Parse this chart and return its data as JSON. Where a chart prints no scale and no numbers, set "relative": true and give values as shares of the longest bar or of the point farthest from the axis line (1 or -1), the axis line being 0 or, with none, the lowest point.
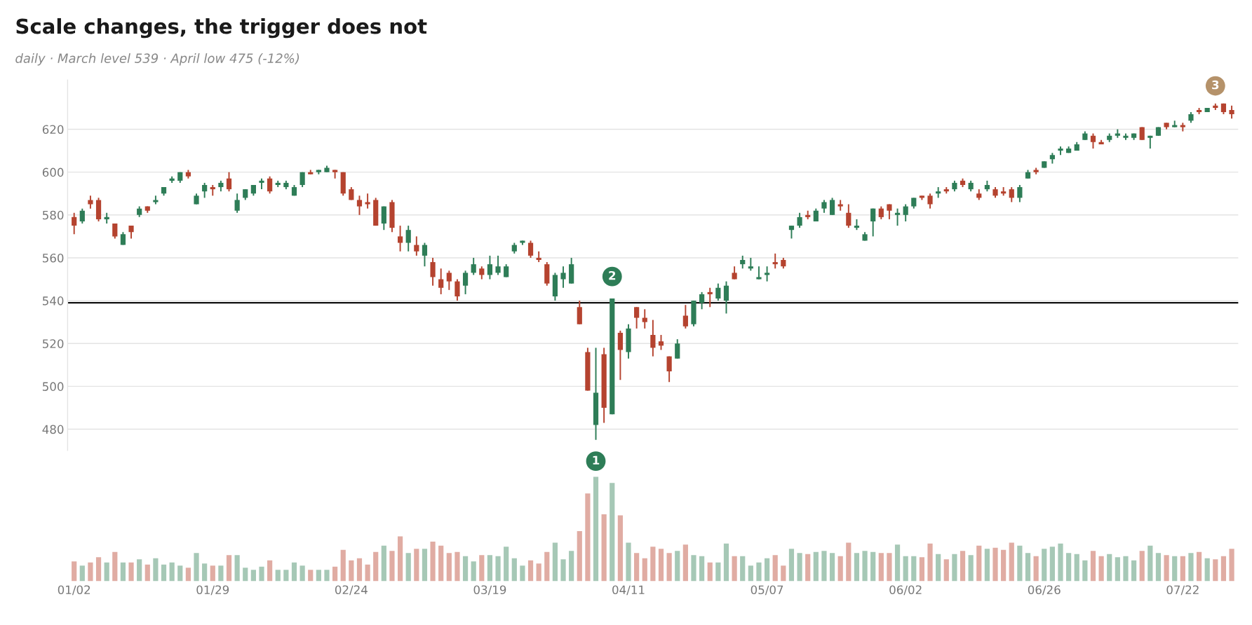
{
  "chart_data": [
    {
      "type": "candlestick",
      "title": "Scale changes, the trigger does not",
      "subtitle": "daily · March level 539 · April low 475 (-12%)",
      "categories": [
        null,
        null,
        null,
        null,
        null,
        null,
        null,
        null,
        null,
        null,
        null,
        null,
        null,
        null,
        null,
        null,
        null,
        null,
        null,
        null,
        null,
        null,
        null,
        null,
        null,
        null,
        null,
        null,
        null,
        null,
        null,
        null,
        null,
        null,
        null,
        null,
        null,
        null,
        null,
        null,
        null,
        null,
        null,
        null,
        null,
        null,
        null,
        null,
        null,
        null,
        null,
        null,
        null,
        null,
        null,
        null,
        null,
        null,
        null,
        null,
        null,
        null,
        null,
        null,
        null,
        null,
        null,
        null,
        null,
        null,
        null,
        null,
        null,
        null,
        null,
        null,
        null,
        null,
        null,
        null,
        null,
        null,
        null,
        null,
        null,
        null,
        null,
        null,
        null,
        null,
        null,
        null,
        null,
        null,
        null,
        null,
        null,
        null,
        null,
        null,
        null,
        null,
        null,
        null,
        null,
        null,
        null,
        null,
        null,
        null,
        null,
        null,
        null,
        null,
        null,
        null,
        null,
        null,
        null,
        null,
        null,
        null,
        null,
        null,
        null,
        null,
        null,
        null,
        null,
        null,
        null,
        null,
        null,
        null,
        null,
        null,
        null,
        null,
        null,
        null,
        null,
        null,
        null
      ],
      "ohlc": [
        [
          579,
          581,
          571,
          575
        ],
        [
          577,
          583,
          576,
          582
        ],
        [
          587,
          589,
          583,
          585
        ],
        [
          587,
          588,
          577,
          578
        ],
        [
          578,
          581,
          576,
          579
        ],
        [
          576,
          576,
          569,
          570
        ],
        [
          566,
          572,
          566,
          571
        ],
        [
          575,
          575,
          569,
          572
        ],
        [
          580,
          584,
          579,
          583
        ],
        [
          584,
          584,
          581,
          582
        ],
        [
          586,
          589,
          585,
          587
        ],
        [
          590,
          593,
          589,
          593
        ],
        [
          596,
          598,
          595,
          597
        ],
        [
          596,
          600,
          595,
          600
        ],
        [
          600,
          601,
          597,
          598
        ],
        [
          585,
          590,
          585,
          589
        ],
        [
          591,
          595,
          588,
          594
        ],
        [
          593,
          594,
          589,
          592
        ],
        [
          593,
          596,
          591,
          595
        ],
        [
          597,
          600,
          591,
          592
        ],
        [
          582,
          590,
          581,
          587
        ],
        [
          588,
          592,
          587,
          592
        ],
        [
          590,
          594,
          589,
          594
        ],
        [
          595,
          597,
          592,
          596
        ],
        [
          597,
          598,
          590,
          591
        ],
        [
          594,
          596,
          593,
          595
        ],
        [
          593,
          596,
          592,
          595
        ],
        [
          589,
          594,
          589,
          593
        ],
        [
          594,
          600,
          593,
          600
        ],
        [
          600,
          601,
          599,
          599
        ],
        [
          600,
          601,
          599,
          601
        ],
        [
          600,
          603,
          600,
          602
        ],
        [
          601,
          601,
          597,
          600
        ],
        [
          600,
          600,
          589,
          590
        ],
        [
          592,
          593,
          587,
          587
        ],
        [
          587,
          589,
          580,
          584
        ],
        [
          586,
          590,
          583,
          585
        ],
        [
          587,
          588,
          575,
          575
        ],
        [
          576,
          584,
          573,
          584
        ],
        [
          586,
          587,
          572,
          574
        ],
        [
          570,
          575,
          563,
          567
        ],
        [
          567,
          575,
          563,
          573
        ],
        [
          566,
          570,
          561,
          563
        ],
        [
          561,
          567,
          556,
          566
        ],
        [
          558,
          560,
          547,
          551
        ],
        [
          550,
          555,
          543,
          546
        ],
        [
          553,
          554,
          545,
          549
        ],
        [
          549,
          550,
          540,
          542
        ],
        [
          547,
          554,
          543,
          553
        ],
        [
          553,
          560,
          552,
          557
        ],
        [
          555,
          556,
          550,
          552
        ],
        [
          552,
          561,
          550,
          557
        ],
        [
          553,
          561,
          552,
          556
        ],
        [
          551,
          557,
          551,
          556
        ],
        [
          563,
          567,
          562,
          566
        ],
        [
          567,
          568,
          566,
          568
        ],
        [
          567,
          568,
          560,
          561
        ],
        [
          560,
          563,
          558,
          559
        ],
        [
          557,
          558,
          547,
          548
        ],
        [
          542,
          553,
          540,
          552
        ],
        [
          550,
          556,
          546,
          553
        ],
        [
          548,
          560,
          548,
          557
        ],
        [
          537,
          540,
          529,
          529
        ],
        [
          516,
          518,
          498,
          498
        ],
        [
          482,
          518,
          475,
          497
        ],
        [
          515,
          518,
          483,
          490
        ],
        [
          487,
          541,
          487,
          541
        ],
        [
          525,
          526,
          503,
          517
        ],
        [
          516,
          529,
          513,
          527
        ],
        [
          537,
          537,
          527,
          532
        ],
        [
          532,
          536,
          527,
          530
        ],
        [
          524,
          531,
          514,
          518
        ],
        [
          521,
          524,
          517,
          519
        ],
        [
          514,
          514,
          502,
          507
        ],
        [
          513,
          522,
          513,
          520
        ],
        [
          533,
          538,
          527,
          528
        ],
        [
          529,
          540,
          528,
          540
        ],
        [
          539,
          544,
          536,
          543
        ],
        [
          544,
          546,
          537,
          543
        ],
        [
          541,
          548,
          540,
          546
        ],
        [
          540,
          549,
          534,
          547
        ],
        [
          553,
          556,
          550,
          550
        ],
        [
          557,
          561,
          555,
          559
        ],
        [
          555,
          560,
          554,
          556
        ],
        [
          550,
          556,
          550,
          551
        ],
        [
          552,
          556,
          549,
          553
        ],
        [
          558,
          562,
          555,
          557
        ],
        [
          559,
          560,
          555,
          556
        ],
        [
          573,
          575,
          569,
          575
        ],
        [
          575,
          581,
          574,
          579
        ],
        [
          580,
          582,
          578,
          579
        ],
        [
          577,
          583,
          577,
          582
        ],
        [
          583,
          587,
          581,
          586
        ],
        [
          580,
          588,
          580,
          587
        ],
        [
          585,
          587,
          582,
          584
        ],
        [
          581,
          585,
          574,
          575
        ],
        [
          574,
          578,
          573,
          575
        ],
        [
          568,
          572,
          568,
          571
        ],
        [
          577,
          583,
          570,
          583
        ],
        [
          583,
          584,
          578,
          579
        ],
        [
          585,
          585,
          578,
          582
        ],
        [
          580,
          583,
          575,
          581
        ],
        [
          580,
          585,
          577,
          584
        ],
        [
          584,
          588,
          583,
          588
        ],
        [
          589,
          589,
          587,
          588
        ],
        [
          589,
          590,
          583,
          585
        ],
        [
          590,
          593,
          588,
          591
        ],
        [
          592,
          593,
          590,
          591
        ],
        [
          592,
          596,
          591,
          595
        ],
        [
          596,
          597,
          593,
          594
        ],
        [
          592,
          596,
          591,
          595
        ],
        [
          590,
          592,
          587,
          588
        ],
        [
          592,
          596,
          591,
          594
        ],
        [
          592,
          593,
          588,
          589
        ],
        [
          591,
          593,
          589,
          590
        ],
        [
          592,
          593,
          586,
          588
        ],
        [
          588,
          594,
          586,
          593
        ],
        [
          597,
          601,
          597,
          600
        ],
        [
          601,
          602,
          599,
          600
        ],
        [
          602,
          605,
          602,
          605
        ],
        [
          606,
          609,
          604,
          608
        ],
        [
          610,
          612,
          608,
          611
        ],
        [
          609,
          612,
          609,
          611
        ],
        [
          610,
          614,
          610,
          613
        ],
        [
          615,
          619,
          615,
          618
        ],
        [
          617,
          618,
          611,
          614
        ],
        [
          614,
          615,
          613,
          613
        ],
        [
          615,
          618,
          614,
          617
        ],
        [
          617,
          620,
          616,
          618
        ],
        [
          616,
          618,
          615,
          617
        ],
        [
          616,
          618,
          615,
          618
        ],
        [
          621,
          621,
          615,
          615
        ],
        [
          616,
          617,
          611,
          617
        ],
        [
          617,
          621,
          617,
          621
        ],
        [
          623,
          623,
          620,
          621
        ],
        [
          621,
          624,
          621,
          622
        ],
        [
          622,
          623,
          619,
          621
        ],
        [
          624,
          628,
          623,
          627
        ],
        [
          629,
          630,
          627,
          628
        ],
        [
          628,
          630,
          628,
          630
        ],
        [
          631,
          632,
          629,
          630
        ],
        [
          632,
          632,
          627,
          628
        ],
        [
          629,
          631,
          625,
          627
        ]
      ],
      "colors": [
        "#b5432f",
        "#2e7d57",
        "#b5432f",
        "#b5432f",
        "#2e7d57",
        "#b5432f",
        "#2e7d57",
        "#b5432f",
        "#2e7d57",
        "#b5432f",
        "#2e7d57",
        "#2e7d57",
        "#2e7d57",
        "#2e7d57",
        "#b5432f",
        "#2e7d57",
        "#2e7d57",
        "#b5432f",
        "#2e7d57",
        "#b5432f",
        "#2e7d57",
        "#2e7d57",
        "#2e7d57",
        "#2e7d57",
        "#b5432f",
        "#2e7d57",
        "#2e7d57",
        "#2e7d57",
        "#2e7d57",
        "#b5432f",
        "#2e7d57",
        "#2e7d57",
        "#b5432f",
        "#b5432f",
        "#b5432f",
        "#b5432f",
        "#b5432f",
        "#b5432f",
        "#2e7d57",
        "#b5432f",
        "#b5432f",
        "#2e7d57",
        "#b5432f",
        "#2e7d57",
        "#b5432f",
        "#b5432f",
        "#b5432f",
        "#b5432f",
        "#2e7d57",
        "#2e7d57",
        "#b5432f",
        "#2e7d57",
        "#2e7d57",
        "#2e7d57",
        "#2e7d57",
        "#2e7d57",
        "#b5432f",
        "#b5432f",
        "#b5432f",
        "#2e7d57",
        "#2e7d57",
        "#2e7d57",
        "#b5432f",
        "#b5432f",
        "#2e7d57",
        "#b5432f",
        "#2e7d57",
        "#b5432f",
        "#2e7d57",
        "#b5432f",
        "#b5432f",
        "#b5432f",
        "#b5432f",
        "#b5432f",
        "#2e7d57",
        "#b5432f",
        "#2e7d57",
        "#2e7d57",
        "#b5432f",
        "#2e7d57",
        "#2e7d57",
        "#b5432f",
        "#2e7d57",
        "#2e7d57",
        "#2e7d57",
        "#2e7d57",
        "#b5432f",
        "#b5432f",
        "#2e7d57",
        "#2e7d57",
        "#b5432f",
        "#2e7d57",
        "#2e7d57",
        "#2e7d57",
        "#b5432f",
        "#b5432f",
        "#2e7d57",
        "#2e7d57",
        "#2e7d57",
        "#b5432f",
        "#b5432f",
        "#2e7d57",
        "#2e7d57",
        "#2e7d57",
        "#b5432f",
        "#b5432f",
        "#2e7d57",
        "#b5432f",
        "#2e7d57",
        "#b5432f",
        "#2e7d57",
        "#b5432f",
        "#2e7d57",
        "#b5432f",
        "#b5432f",
        "#b5432f",
        "#2e7d57",
        "#2e7d57",
        "#b5432f",
        "#2e7d57",
        "#2e7d57",
        "#2e7d57",
        "#2e7d57",
        "#2e7d57",
        "#2e7d57",
        "#b5432f",
        "#b5432f",
        "#2e7d57",
        "#2e7d57",
        "#2e7d57",
        "#2e7d57",
        "#b5432f",
        "#2e7d57",
        "#2e7d57",
        "#b5432f",
        "#2e7d57",
        "#b5432f",
        "#2e7d57",
        "#b5432f",
        "#2e7d57",
        "#b5432f",
        "#b5432f",
        "#b5432f"
      ],
      "ylim": [
        470,
        643
      ],
      "yticks": [
        480,
        500,
        520,
        540,
        560,
        580,
        600,
        620
      ],
      "grid": "y",
      "ref_lines": [
        {
          "axis": "y",
          "value": 539,
          "color": "#111111"
        }
      ],
      "annotations": [
        "2",
        "3"
      ]
    },
    {
      "type": "bar",
      "relative": true,
      "tick_labels": "x",
      "categories": [
        "01/02",
        null,
        null,
        null,
        null,
        null,
        null,
        null,
        null,
        null,
        null,
        null,
        null,
        null,
        null,
        null,
        null,
        "01/29",
        null,
        null,
        null,
        null,
        null,
        null,
        null,
        null,
        null,
        null,
        null,
        null,
        null,
        null,
        null,
        null,
        "02/24",
        null,
        null,
        null,
        null,
        null,
        null,
        null,
        null,
        null,
        null,
        null,
        null,
        null,
        null,
        null,
        null,
        "03/19",
        null,
        null,
        null,
        null,
        null,
        null,
        null,
        null,
        null,
        null,
        null,
        null,
        null,
        null,
        null,
        null,
        "04/11",
        null,
        null,
        null,
        null,
        null,
        null,
        null,
        null,
        null,
        null,
        null,
        null,
        null,
        null,
        null,
        null,
        "05/07",
        null,
        null,
        null,
        null,
        null,
        null,
        null,
        null,
        null,
        null,
        null,
        null,
        null,
        null,
        null,
        null,
        "06/02",
        null,
        null,
        null,
        null,
        null,
        null,
        null,
        null,
        null,
        null,
        null,
        null,
        null,
        null,
        null,
        null,
        "06/26",
        null,
        null,
        null,
        null,
        null,
        null,
        null,
        null,
        null,
        null,
        null,
        null,
        null,
        null,
        null,
        null,
        "07/22",
        null,
        null,
        null,
        null,
        null,
        null
      ],
      "values": [
        0.19,
        0.15,
        0.18,
        0.23,
        0.18,
        0.28,
        0.18,
        0.18,
        0.21,
        0.16,
        0.22,
        0.16,
        0.18,
        0.15,
        0.13,
        0.27,
        0.17,
        0.15,
        0.15,
        0.25,
        0.25,
        0.13,
        0.11,
        0.14,
        0.2,
        0.11,
        0.11,
        0.18,
        0.15,
        0.11,
        0.11,
        0.11,
        0.14,
        0.3,
        0.2,
        0.22,
        0.16,
        0.28,
        0.34,
        0.29,
        0.43,
        0.27,
        0.31,
        0.31,
        0.38,
        0.34,
        0.27,
        0.28,
        0.24,
        0.19,
        0.25,
        0.25,
        0.24,
        0.33,
        0.22,
        0.15,
        0.2,
        0.17,
        0.28,
        0.37,
        0.21,
        0.29,
        0.48,
        0.84,
        1,
        0.64,
        0.94,
        0.63,
        0.37,
        0.27,
        0.22,
        0.33,
        0.31,
        0.27,
        0.29,
        0.35,
        0.25,
        0.24,
        0.18,
        0.18,
        0.36,
        0.24,
        0.24,
        0.15,
        0.18,
        0.22,
        0.25,
        0.15,
        0.31,
        0.27,
        0.26,
        0.28,
        0.29,
        0.27,
        0.24,
        0.37,
        0.27,
        0.29,
        0.28,
        0.27,
        0.27,
        0.35,
        0.24,
        0.24,
        0.23,
        0.36,
        0.26,
        0.21,
        0.26,
        0.29,
        0.25,
        0.34,
        0.31,
        0.32,
        0.3,
        0.37,
        0.34,
        0.27,
        0.24,
        0.31,
        0.33,
        0.36,
        0.27,
        0.26,
        0.2,
        0.29,
        0.24,
        0.26,
        0.23,
        0.24,
        0.2,
        0.29,
        0.34,
        0.27,
        0.25,
        0.24,
        0.24,
        0.27,
        0.28,
        0.22,
        0.21,
        0.24,
        0.31
      ],
      "colors": [
        "#e0aca3",
        "#a6c8b6",
        "#e0aca3",
        "#e0aca3",
        "#a6c8b6",
        "#e0aca3",
        "#a6c8b6",
        "#e0aca3",
        "#a6c8b6",
        "#e0aca3",
        "#a6c8b6",
        "#a6c8b6",
        "#a6c8b6",
        "#a6c8b6",
        "#e0aca3",
        "#a6c8b6",
        "#a6c8b6",
        "#e0aca3",
        "#a6c8b6",
        "#e0aca3",
        "#a6c8b6",
        "#a6c8b6",
        "#a6c8b6",
        "#a6c8b6",
        "#e0aca3",
        "#a6c8b6",
        "#a6c8b6",
        "#a6c8b6",
        "#a6c8b6",
        "#e0aca3",
        "#a6c8b6",
        "#a6c8b6",
        "#e0aca3",
        "#e0aca3",
        "#e0aca3",
        "#e0aca3",
        "#e0aca3",
        "#e0aca3",
        "#a6c8b6",
        "#e0aca3",
        "#e0aca3",
        "#a6c8b6",
        "#e0aca3",
        "#a6c8b6",
        "#e0aca3",
        "#e0aca3",
        "#e0aca3",
        "#e0aca3",
        "#a6c8b6",
        "#a6c8b6",
        "#e0aca3",
        "#a6c8b6",
        "#a6c8b6",
        "#a6c8b6",
        "#a6c8b6",
        "#a6c8b6",
        "#e0aca3",
        "#e0aca3",
        "#e0aca3",
        "#a6c8b6",
        "#a6c8b6",
        "#a6c8b6",
        "#e0aca3",
        "#e0aca3",
        "#a6c8b6",
        "#e0aca3",
        "#a6c8b6",
        "#e0aca3",
        "#a6c8b6",
        "#e0aca3",
        "#e0aca3",
        "#e0aca3",
        "#e0aca3",
        "#e0aca3",
        "#a6c8b6",
        "#e0aca3",
        "#a6c8b6",
        "#a6c8b6",
        "#e0aca3",
        "#a6c8b6",
        "#a6c8b6",
        "#e0aca3",
        "#a6c8b6",
        "#a6c8b6",
        "#a6c8b6",
        "#a6c8b6",
        "#e0aca3",
        "#e0aca3",
        "#a6c8b6",
        "#a6c8b6",
        "#e0aca3",
        "#a6c8b6",
        "#a6c8b6",
        "#a6c8b6",
        "#e0aca3",
        "#e0aca3",
        "#a6c8b6",
        "#a6c8b6",
        "#a6c8b6",
        "#e0aca3",
        "#e0aca3",
        "#a6c8b6",
        "#a6c8b6",
        "#a6c8b6",
        "#e0aca3",
        "#e0aca3",
        "#a6c8b6",
        "#e0aca3",
        "#a6c8b6",
        "#e0aca3",
        "#a6c8b6",
        "#e0aca3",
        "#a6c8b6",
        "#e0aca3",
        "#e0aca3",
        "#e0aca3",
        "#a6c8b6",
        "#a6c8b6",
        "#e0aca3",
        "#a6c8b6",
        "#a6c8b6",
        "#a6c8b6",
        "#a6c8b6",
        "#a6c8b6",
        "#a6c8b6",
        "#e0aca3",
        "#e0aca3",
        "#a6c8b6",
        "#a6c8b6",
        "#a6c8b6",
        "#a6c8b6",
        "#e0aca3",
        "#a6c8b6",
        "#a6c8b6",
        "#e0aca3",
        "#a6c8b6",
        "#e0aca3",
        "#a6c8b6",
        "#e0aca3",
        "#a6c8b6",
        "#e0aca3",
        "#e0aca3",
        "#e0aca3"
      ],
      "annotations": [
        "1"
      ]
    }
  ]
}
